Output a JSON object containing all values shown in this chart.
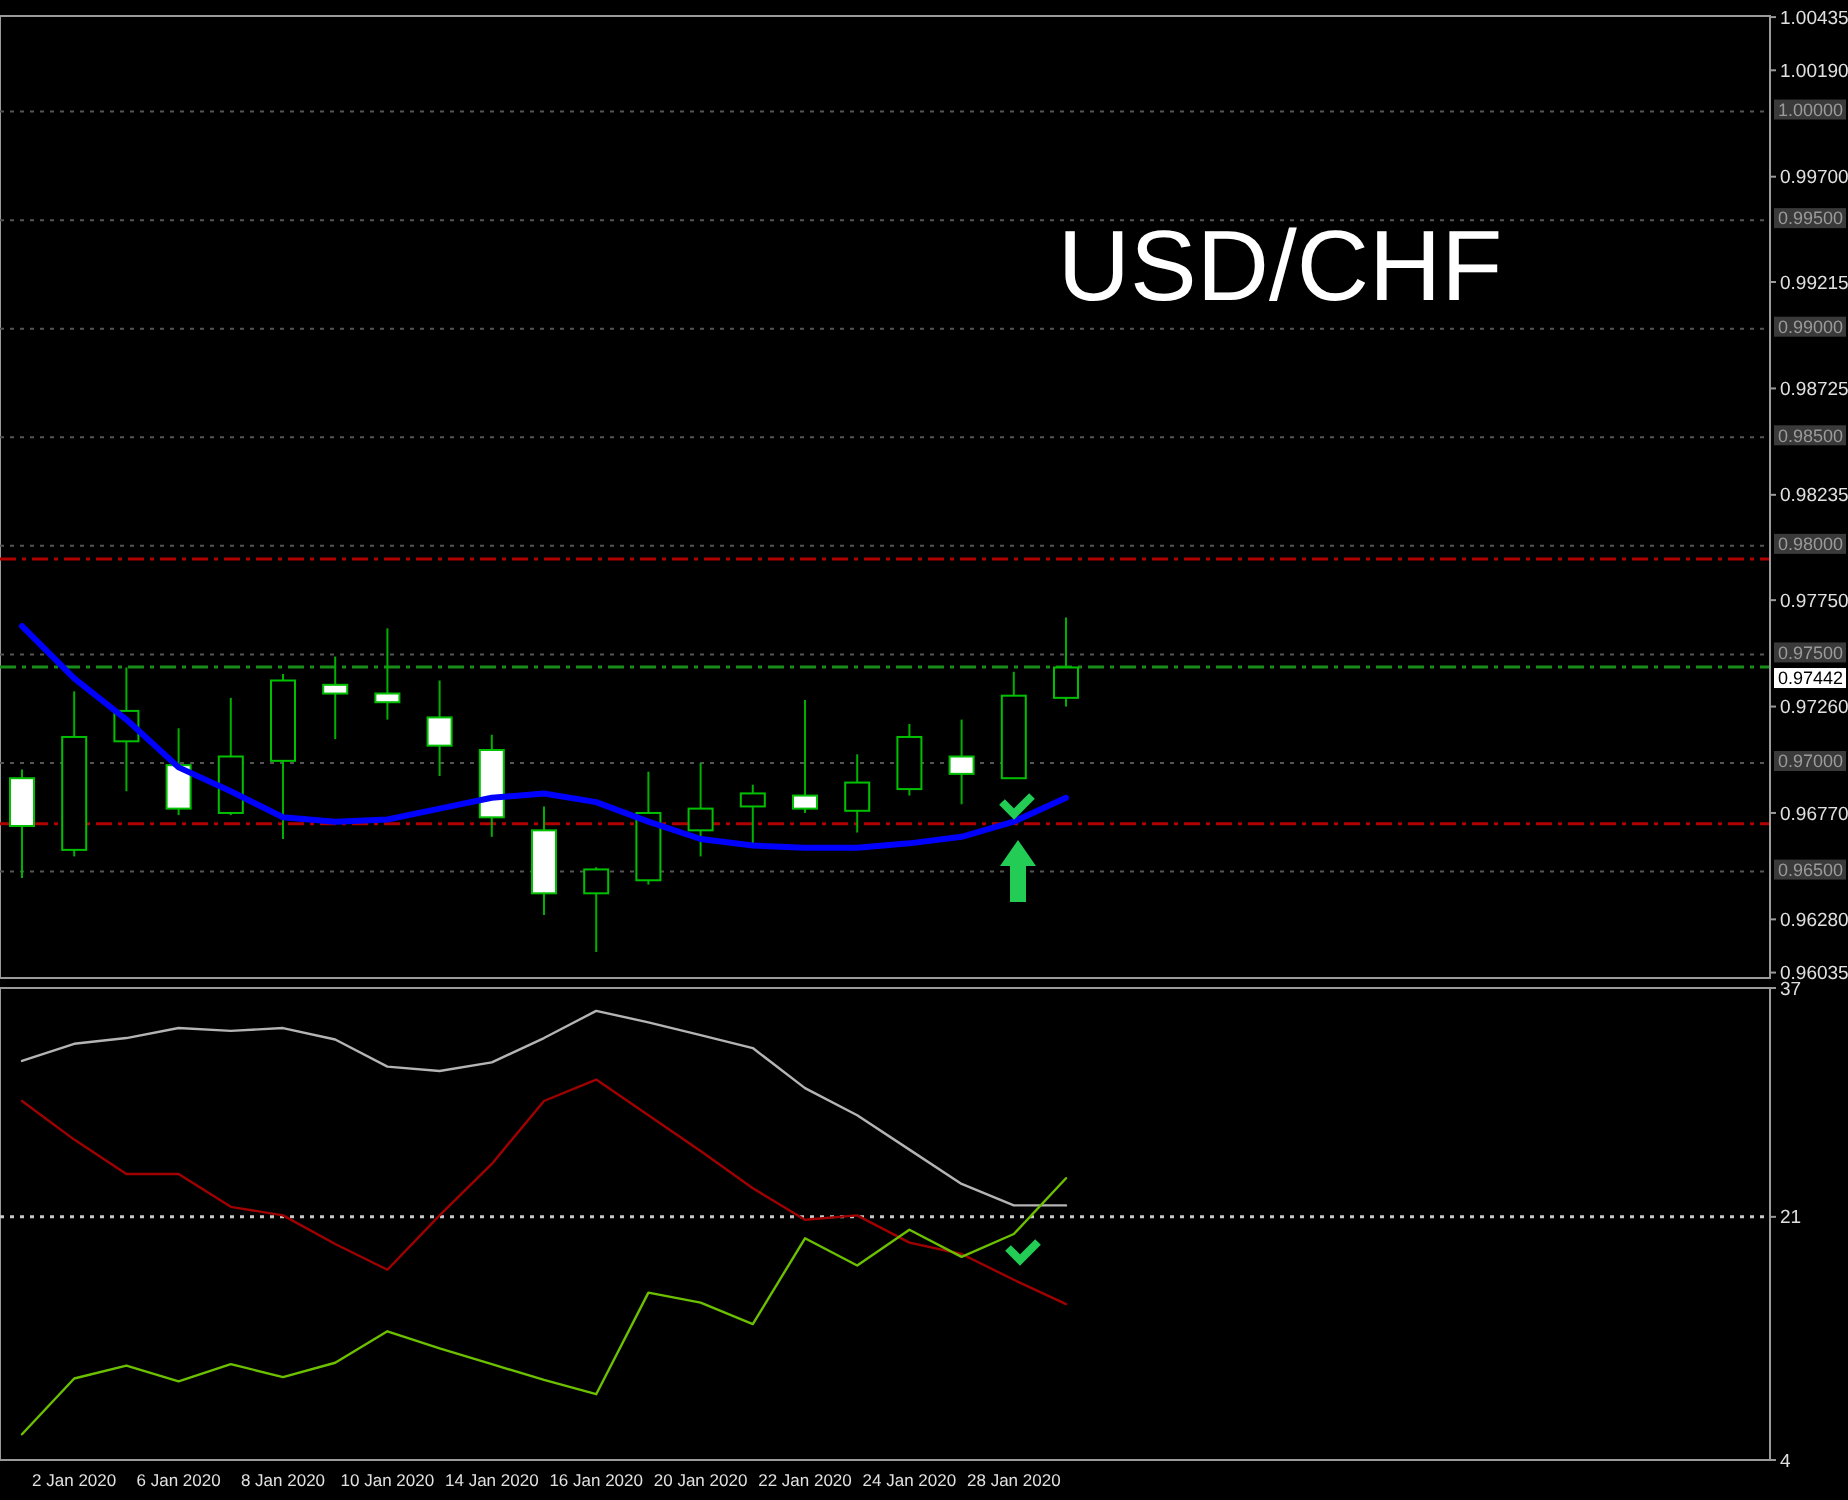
{
  "chart_data": [
    {
      "type": "candlestick",
      "title": "USD/CHF",
      "tick_labels": "y",
      "categories": [
        null,
        null,
        null,
        null,
        null,
        null,
        null,
        null,
        null,
        null,
        null,
        null,
        null,
        null,
        null,
        null,
        null,
        null,
        null,
        null,
        null
      ],
      "ohlc": [
        [
          0.9693,
          0.9697,
          0.9647,
          0.9671
        ],
        [
          0.966,
          0.9733,
          0.9657,
          0.9712
        ],
        [
          0.971,
          0.9744,
          0.9687,
          0.9724
        ],
        [
          0.9699,
          0.9716,
          0.9676,
          0.9679
        ],
        [
          0.9677,
          0.973,
          0.9676,
          0.9703
        ],
        [
          0.9701,
          0.9741,
          0.9665,
          0.9738
        ],
        [
          0.9736,
          0.9749,
          0.9711,
          0.9732
        ],
        [
          0.9732,
          0.9762,
          0.972,
          0.9728
        ],
        [
          0.9721,
          0.9738,
          0.9694,
          0.9708
        ],
        [
          0.9706,
          0.9713,
          0.9666,
          0.9675
        ],
        [
          0.9669,
          0.968,
          0.963,
          0.964
        ],
        [
          0.964,
          0.9652,
          0.9613,
          0.9651
        ],
        [
          0.9646,
          0.9696,
          0.9644,
          0.9677
        ],
        [
          0.9669,
          0.97,
          0.9657,
          0.9679
        ],
        [
          0.968,
          0.969,
          0.9662,
          0.9686
        ],
        [
          0.9685,
          0.9729,
          0.9677,
          0.9679
        ],
        [
          0.9678,
          0.9704,
          0.9668,
          0.9691
        ],
        [
          0.9688,
          0.9718,
          0.9685,
          0.9712
        ],
        [
          0.9703,
          0.972,
          0.9681,
          0.9695
        ],
        [
          0.9693,
          0.9742,
          0.9693,
          0.9731
        ],
        [
          0.973,
          0.9767,
          0.9726,
          0.9744
        ]
      ],
      "series": [
        {
          "type": "line",
          "color": "#0000ff",
          "values": [
            0.9763,
            0.9739,
            0.972,
            0.9698,
            0.9687,
            0.9675,
            0.9673,
            0.9674,
            0.9679,
            0.9684,
            0.9686,
            0.9682,
            0.9673,
            0.9665,
            0.9662,
            0.9661,
            0.9661,
            0.9663,
            0.9666,
            0.9673,
            0.9684
          ]
        }
      ],
      "ylim": [
        0.9601,
        1.0044
      ],
      "yticks": [
        {
          "value": 0.96035,
          "label": "0.96035"
        },
        {
          "value": 0.9628,
          "label": "0.96280"
        },
        {
          "value": 0.9677,
          "label": "0.96770"
        },
        {
          "value": 0.9726,
          "label": "0.97260"
        },
        {
          "value": 0.9775,
          "label": "0.97750"
        },
        {
          "value": 0.98235,
          "label": "0.98235"
        },
        {
          "value": 0.98725,
          "label": "0.98725"
        },
        {
          "value": 0.99215,
          "label": "0.99215"
        },
        {
          "value": 0.997,
          "label": "0.99700"
        },
        {
          "value": 1.0019,
          "label": "1.00190"
        },
        {
          "value": 1.00435,
          "label": "1.00435"
        }
      ],
      "ref_lines": [
        {
          "axis": "y",
          "value": 1.0,
          "label": "1.00000",
          "line_style": "dotted"
        },
        {
          "axis": "y",
          "value": 0.995,
          "label": "0.99500",
          "line_style": "dotted"
        },
        {
          "axis": "y",
          "value": 0.99,
          "label": "0.99000",
          "line_style": "dotted"
        },
        {
          "axis": "y",
          "value": 0.985,
          "label": "0.98500",
          "line_style": "dotted"
        },
        {
          "axis": "y",
          "value": 0.98,
          "label": "0.98000",
          "line_style": "dotted"
        },
        {
          "axis": "y",
          "value": 0.975,
          "label": "0.97500",
          "line_style": "dotted"
        },
        {
          "axis": "y",
          "value": 0.97,
          "label": "0.97000",
          "line_style": "dotted"
        },
        {
          "axis": "y",
          "value": 0.965,
          "label": "0.96500",
          "line_style": "dotted"
        },
        {
          "axis": "y",
          "value": 0.9794,
          "color": "#b00000",
          "line_style": "dashed"
        },
        {
          "axis": "y",
          "value": 0.9672,
          "color": "#b00000",
          "line_style": "dashed"
        },
        {
          "axis": "y",
          "value": 0.97442,
          "label": "0.97442",
          "color": "#1a8c1a",
          "line_style": "dashed"
        }
      ]
    },
    {
      "type": "line",
      "categories": [
        null,
        "2 Jan 2020",
        null,
        "6 Jan 2020",
        null,
        "8 Jan 2020",
        null,
        "10 Jan 2020",
        null,
        "14 Jan 2020",
        null,
        "16 Jan 2020",
        null,
        "20 Jan 2020",
        null,
        "22 Jan 2020",
        null,
        "24 Jan 2020",
        null,
        "28 Jan 2020",
        null
      ],
      "series": [
        {
          "color": "#b4b4b4",
          "values": [
            31.9,
            33.1,
            33.5,
            34.2,
            34.0,
            34.2,
            33.4,
            31.5,
            31.2,
            31.8,
            33.5,
            35.4,
            34.6,
            33.7,
            32.8,
            30.0,
            28.1,
            25.7,
            23.3,
            21.8,
            21.8
          ]
        },
        {
          "color": "#a00000",
          "values": [
            29.1,
            26.4,
            24.0,
            24.0,
            21.7,
            21.1,
            19.1,
            17.3,
            21.1,
            24.7,
            29.1,
            30.6,
            28.1,
            25.6,
            23.0,
            20.8,
            21.1,
            19.2,
            18.4,
            16.6,
            14.9
          ]
        },
        {
          "color": "#6cc000",
          "values": [
            5.8,
            9.7,
            10.6,
            9.5,
            10.7,
            9.8,
            10.8,
            13.0,
            11.8,
            10.7,
            9.6,
            8.6,
            15.7,
            15.0,
            13.5,
            19.5,
            17.6,
            20.1,
            18.2,
            19.8,
            23.7
          ]
        }
      ],
      "ylim": [
        4,
        37
      ],
      "yticks": [
        4,
        21,
        37
      ],
      "ref_lines": [
        {
          "axis": "y",
          "value": 21,
          "color": "#c8c8c8",
          "line_style": "dotted"
        }
      ]
    }
  ]
}
